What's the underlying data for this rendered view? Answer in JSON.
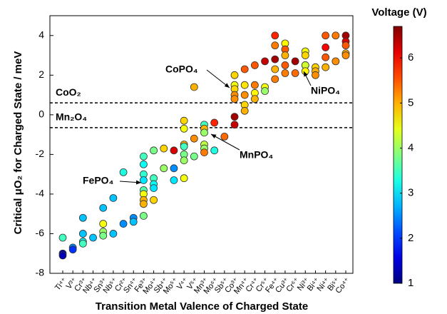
{
  "chart_data": {
    "type": "scatter",
    "ylabel": "Critical μO₂ for Charged State / meV",
    "xlabel": "Transition Metal Valence of Charged State",
    "categories": [
      "Ti⁴⁺",
      "V³⁺",
      "Cr³⁺",
      "Nb⁴⁺",
      "Sn³⁺",
      "Nb⁵⁺",
      "Cr²⁺",
      "Sn⁴⁺",
      "Fe³⁺",
      "Mo⁴⁺",
      "Sb⁴⁺",
      "Mo⁵⁺",
      "V⁴⁺",
      "V⁵⁺",
      "Mn³⁺",
      "Mo⁶⁺",
      "Sb⁵⁺",
      "Co³⁺",
      "Mn⁴⁺",
      "Cr⁴⁺",
      "Cr⁵⁺",
      "Fe⁴⁺",
      "Cu³⁺",
      "Cr⁶⁺",
      "Ni³⁺",
      "Bi⁴⁺",
      "Ni⁴⁺",
      "Bi⁵⁺",
      "Co⁴⁺"
    ],
    "points": [
      {
        "y": [
          -6.2,
          -7.0,
          -7.1
        ],
        "voltage": [
          3.5,
          1.2,
          1.3
        ]
      },
      {
        "y": [
          -6.7,
          -6.8
        ],
        "voltage": [
          2.5,
          2.0
        ]
      },
      {
        "y": [
          -5.2,
          -6.0,
          -6.4,
          -6.5
        ],
        "voltage": [
          2.8,
          2.8,
          3.2,
          3.5
        ]
      },
      {
        "y": [
          -6.2
        ],
        "voltage": [
          2.8
        ]
      },
      {
        "y": [
          -4.7,
          -5.5,
          -5.9,
          -6.1
        ],
        "voltage": [
          2.8,
          4.5,
          4.0,
          3.8
        ]
      },
      {
        "y": [
          -4.2,
          -6.0
        ],
        "voltage": [
          2.8,
          2.8
        ]
      },
      {
        "y": [
          -2.9,
          -5.5
        ],
        "voltage": [
          3.3,
          2.5
        ]
      },
      {
        "y": [
          -5.2,
          -5.4
        ],
        "voltage": [
          2.5,
          2.8
        ]
      },
      {
        "y": [
          -2.1,
          -2.5,
          -3.0,
          -3.3,
          -3.8,
          -4.0,
          -4.3,
          -4.5,
          -5.1
        ],
        "voltage": [
          3.5,
          3.2,
          3.4,
          3.0,
          3.6,
          4.5,
          5.0,
          5.0,
          3.8
        ]
      },
      {
        "y": [
          -1.8,
          -3.2,
          -3.5,
          -3.7,
          -4.3
        ],
        "voltage": [
          3.8,
          3.5,
          3.2,
          3.0,
          4.8
        ]
      },
      {
        "y": [
          -1.7,
          -2.7
        ],
        "voltage": [
          4.8,
          4.0
        ]
      },
      {
        "y": [
          -1.8,
          -2.7,
          -3.3
        ],
        "voltage": [
          6.2,
          2.5,
          3.0
        ]
      },
      {
        "y": [
          -0.3,
          -0.7,
          -1.5,
          -1.6,
          -2.0,
          -2.3,
          -3.2
        ],
        "voltage": [
          4.8,
          4.5,
          5.0,
          3.5,
          3.8,
          4.0,
          4.5
        ]
      },
      {
        "y": [
          1.4,
          -1.2,
          -2.1
        ],
        "voltage": [
          5.0,
          5.2,
          3.8
        ]
      },
      {
        "y": [
          -0.5,
          -0.7,
          -0.9,
          -1.5,
          -1.7,
          -1.9
        ],
        "voltage": [
          3.5,
          5.0,
          4.0,
          4.2,
          4.0,
          5.3
        ]
      },
      {
        "y": [
          -0.4,
          -1.8
        ],
        "voltage": [
          5.8,
          3.3
        ]
      },
      {
        "y": [
          -1.1
        ],
        "voltage": [
          5.4
        ]
      },
      {
        "y": [
          2.0,
          1.5,
          1.3,
          1.0,
          0.8,
          -0.1,
          -0.5
        ],
        "voltage": [
          4.8,
          4.5,
          4.8,
          5.2,
          5.2,
          6.5,
          6.3
        ]
      },
      {
        "y": [
          2.3,
          1.5,
          1.0,
          0.5,
          0.2
        ],
        "voltage": [
          5.5,
          4.7,
          5.2,
          4.8,
          5.0
        ]
      },
      {
        "y": [
          2.5,
          1.5,
          1.1,
          0.8
        ],
        "voltage": [
          5.5,
          5.3,
          4.6,
          5.0
        ]
      },
      {
        "y": [
          2.7,
          1.4,
          1.2
        ],
        "voltage": [
          6.3,
          4.5,
          4.0
        ]
      },
      {
        "y": [
          4.0,
          3.5,
          2.8,
          2.3,
          1.8
        ],
        "voltage": [
          5.8,
          5.3,
          6.5,
          5.0,
          5.3
        ]
      },
      {
        "y": [
          3.6,
          3.3,
          3.0,
          2.5,
          2.1
        ],
        "voltage": [
          4.6,
          5.5,
          5.0,
          5.5,
          5.3
        ]
      },
      {
        "y": [
          2.7,
          2.1
        ],
        "voltage": [
          6.5,
          5.4
        ]
      },
      {
        "y": [
          3.2,
          3.0,
          2.5,
          2.5,
          2.2
        ],
        "voltage": [
          4.5,
          4.8,
          5.5,
          4.3,
          4.6
        ]
      },
      {
        "y": [
          2.4,
          2.2,
          2.0
        ],
        "voltage": [
          4.8,
          5.0,
          5.2
        ]
      },
      {
        "y": [
          4.0,
          3.4,
          2.9,
          2.4
        ],
        "voltage": [
          5.5,
          6.0,
          5.5,
          5.0
        ]
      },
      {
        "y": [
          4.0,
          2.7
        ],
        "voltage": [
          5.3,
          5.2
        ]
      },
      {
        "y": [
          4.0,
          3.7,
          3.5,
          3.1,
          3.0
        ],
        "voltage": [
          6.5,
          6.2,
          5.5,
          5.0,
          5.2
        ]
      }
    ],
    "ylim": [
      -8,
      5
    ],
    "yticks": [
      -8,
      -6,
      -4,
      -2,
      0,
      2,
      4
    ],
    "hlines": [
      {
        "y": 0.6,
        "label": "CoO₂"
      },
      {
        "y": -0.65,
        "label": "Mn₂O₄"
      }
    ],
    "annotations": [
      "CoPO₄",
      "NiPO₄",
      "MnPO₄",
      "FePO₄"
    ],
    "colorbar": {
      "label": "Voltage (V)",
      "lim": [
        1,
        6.7
      ],
      "ticks": [
        1,
        2,
        3,
        4,
        5,
        6
      ]
    }
  }
}
